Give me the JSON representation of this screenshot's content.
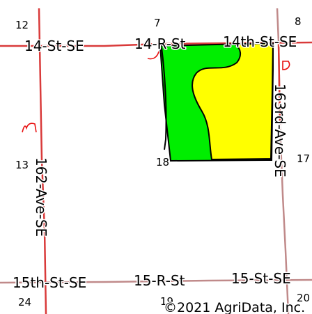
{
  "roads": {
    "r14_st_se_left": "14-St-SE",
    "r14_r_st": "14-R-St",
    "r14th_st_se": "14th-St-SE",
    "r162_ave_se": "162-Ave-SE",
    "r163rd_ave_se": "163rd-Ave-SE",
    "r15th_st_se": "15th-St-SE",
    "r15_r_st": "15-R-St",
    "r15_st_se": "15-St-SE"
  },
  "sections": {
    "s12": "12",
    "s7": "7",
    "s8": "8",
    "s13": "13",
    "s18": "18",
    "s17": "17",
    "s24": "24",
    "s19": "19",
    "s20": "20"
  },
  "copyright": "©2021 AgriData, Inc.",
  "colors": {
    "road_line": "#d93a3a",
    "section_line": "#c08a8a",
    "field_green": "#00ee00",
    "field_yellow": "#ffff00",
    "field_outline": "#000000",
    "annotation_red": "#e81010"
  }
}
